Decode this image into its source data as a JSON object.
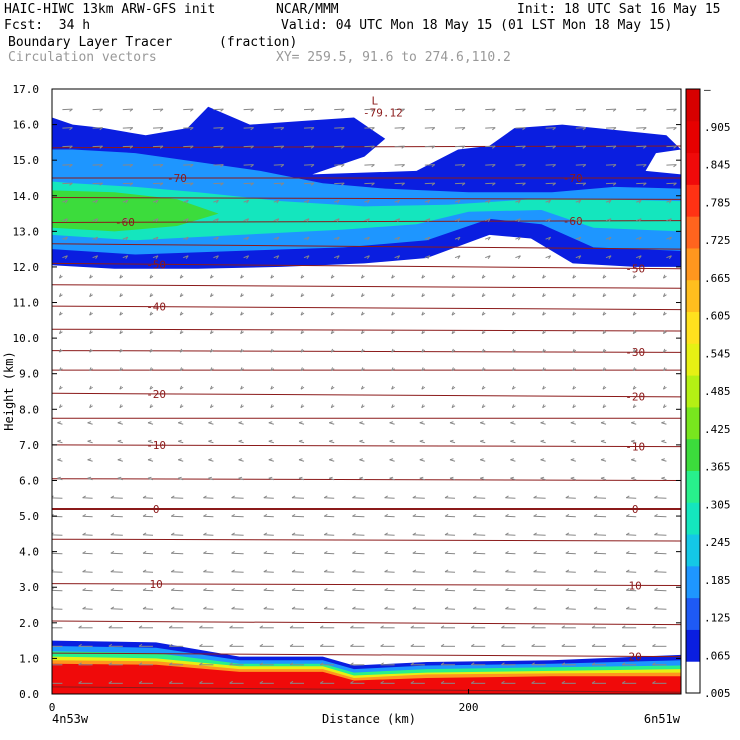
{
  "header": {
    "title_left": "HAIC-HIWC 13km ARW-GFS init",
    "org": "NCAR/MMM",
    "init": "Init: 18 UTC Sat 16 May 15",
    "fcst": "Fcst:  34 h",
    "valid": "Valid: 04 UTC Mon 18 May 15 (01 LST Mon 18 May 15)",
    "field": "Boundary Layer Tracer",
    "units": "(fraction)",
    "vectors": "Circulation vectors",
    "xy": "XY= 259.5, 91.6 to 274.6,110.2"
  },
  "chart_data": {
    "type": "heatmap",
    "title": "Boundary Layer Tracer (fraction)",
    "xlabel": "Distance (km)",
    "ylabel": "Height (km)",
    "xlim": [
      0,
      302
    ],
    "ylim": [
      0,
      17
    ],
    "x_ticks": [
      0,
      200
    ],
    "y_ticks": [
      "0.0",
      "1.0",
      "2.0",
      "3.0",
      "4.0",
      "5.0",
      "6.0",
      "7.0",
      "8.0",
      "9.0",
      "10.0",
      "11.0",
      "12.0",
      "13.0",
      "14.0",
      "15.0",
      "16.0",
      "17.0"
    ],
    "x_end_labels": {
      "left": "4n53w",
      "right": "6n51w"
    },
    "colorbar": {
      "labels": [
        ".005",
        ".065",
        ".125",
        ".185",
        ".245",
        ".305",
        ".365",
        ".425",
        ".485",
        ".545",
        ".605",
        ".665",
        ".725",
        ".785",
        ".845",
        ".905",
        "–"
      ],
      "colors": [
        "#ffffff",
        "#0a1ee0",
        "#1e5af5",
        "#1e96ff",
        "#14c8e6",
        "#14e6be",
        "#28f08c",
        "#3cdc3c",
        "#78e61e",
        "#b4f014",
        "#e6f014",
        "#ffe11e",
        "#ffbe1e",
        "#ff961e",
        "#ff641e",
        "#ff3214",
        "#f00a0a",
        "#e60000",
        "#d70000"
      ]
    },
    "temperature_contours": [
      {
        "y_left": 0.2,
        "y_right": 0.05,
        "label": ""
      },
      {
        "y_left": 1.15,
        "y_right": 1.05,
        "label": "20"
      },
      {
        "y_left": 2.05,
        "y_right": 1.95,
        "label": ""
      },
      {
        "y_left": 3.1,
        "y_right": 3.05,
        "label": "10"
      },
      {
        "y_left": 4.35,
        "y_right": 4.3,
        "label": ""
      },
      {
        "y_left": 5.2,
        "y_right": 5.2,
        "label": "0"
      },
      {
        "y_left": 6.05,
        "y_right": 6.0,
        "label": ""
      },
      {
        "y_left": 7.0,
        "y_right": 6.95,
        "label": "-10"
      },
      {
        "y_left": 7.75,
        "y_right": 7.75,
        "label": ""
      },
      {
        "y_left": 8.45,
        "y_right": 8.35,
        "label": "-20"
      },
      {
        "y_left": 9.1,
        "y_right": 9.1,
        "label": ""
      },
      {
        "y_left": 9.65,
        "y_right": 9.6,
        "label": "-30"
      },
      {
        "y_left": 10.25,
        "y_right": 10.2,
        "label": ""
      },
      {
        "y_left": 10.9,
        "y_right": 10.8,
        "label": "-40"
      },
      {
        "y_left": 11.5,
        "y_right": 11.4,
        "label": ""
      },
      {
        "y_left": 12.1,
        "y_right": 11.95,
        "label": "-50"
      },
      {
        "y_left": 12.65,
        "y_right": 12.5,
        "label": ""
      },
      {
        "y_left": 13.25,
        "y_right": 13.3,
        "label": "-60"
      },
      {
        "y_left": 13.95,
        "y_right": 13.9,
        "label": ""
      },
      {
        "y_left": 14.5,
        "y_right": 14.5,
        "label": "-70"
      },
      {
        "y_left": 15.35,
        "y_right": 15.4,
        "label": ""
      }
    ],
    "contour_label_positions": {
      "20": [
        280
      ],
      "10": [
        50,
        280
      ],
      "0": [
        50,
        280
      ],
      "-10": [
        50,
        280
      ],
      "-20": [
        50,
        280
      ],
      "-30": [
        280
      ],
      "-40": [
        50
      ],
      "-50": [
        50,
        280
      ],
      "-60": [
        35,
        250
      ],
      "-70": [
        60,
        250
      ]
    },
    "min_label": {
      "marker": "L",
      "value": "-79.12",
      "x": 155,
      "y": 16.85
    },
    "upper_plume": {
      "outer": [
        [
          0,
          12.05
        ],
        [
          30,
          11.95
        ],
        [
          70,
          11.95
        ],
        [
          110,
          12.0
        ],
        [
          150,
          12.1
        ],
        [
          180,
          12.25
        ],
        [
          210,
          12.9
        ],
        [
          230,
          12.8
        ],
        [
          250,
          12.1
        ],
        [
          280,
          12.0
        ],
        [
          302,
          12.0
        ],
        [
          302,
          14.6
        ],
        [
          285,
          14.7
        ],
        [
          290,
          15.2
        ],
        [
          302,
          15.3
        ],
        [
          295,
          15.7
        ],
        [
          270,
          15.85
        ],
        [
          245,
          16.0
        ],
        [
          222,
          15.9
        ],
        [
          210,
          15.4
        ],
        [
          195,
          15.3
        ],
        [
          175,
          14.7
        ],
        [
          125,
          14.6
        ],
        [
          150,
          15.1
        ],
        [
          160,
          15.6
        ],
        [
          145,
          16.2
        ],
        [
          120,
          16.1
        ],
        [
          95,
          16.0
        ],
        [
          75,
          16.5
        ],
        [
          65,
          15.9
        ],
        [
          45,
          15.7
        ],
        [
          25,
          15.9
        ],
        [
          10,
          16.0
        ],
        [
          0,
          16.2
        ]
      ],
      "mid": [
        [
          0,
          12.5
        ],
        [
          40,
          12.35
        ],
        [
          90,
          12.45
        ],
        [
          140,
          12.55
        ],
        [
          180,
          12.75
        ],
        [
          210,
          13.35
        ],
        [
          235,
          13.2
        ],
        [
          260,
          12.55
        ],
        [
          302,
          12.45
        ],
        [
          302,
          14.2
        ],
        [
          270,
          14.25
        ],
        [
          240,
          14.1
        ],
        [
          200,
          14.1
        ],
        [
          160,
          14.2
        ],
        [
          130,
          14.35
        ],
        [
          100,
          14.7
        ],
        [
          70,
          14.95
        ],
        [
          40,
          15.2
        ],
        [
          10,
          15.3
        ],
        [
          0,
          15.3
        ]
      ],
      "core": [
        [
          0,
          12.9
        ],
        [
          40,
          12.75
        ],
        [
          90,
          12.9
        ],
        [
          140,
          13.05
        ],
        [
          175,
          13.2
        ],
        [
          200,
          13.55
        ],
        [
          235,
          13.6
        ],
        [
          260,
          13.1
        ],
        [
          302,
          13.0
        ],
        [
          302,
          13.85
        ],
        [
          260,
          13.9
        ],
        [
          230,
          13.9
        ],
        [
          190,
          13.75
        ],
        [
          150,
          13.7
        ],
        [
          110,
          13.85
        ],
        [
          70,
          14.1
        ],
        [
          40,
          14.25
        ],
        [
          10,
          14.35
        ],
        [
          0,
          14.4
        ]
      ],
      "peak": [
        [
          0,
          13.1
        ],
        [
          30,
          13.0
        ],
        [
          60,
          13.15
        ],
        [
          80,
          13.5
        ],
        [
          60,
          13.9
        ],
        [
          30,
          14.1
        ],
        [
          0,
          14.15
        ]
      ]
    },
    "surface_layer": {
      "bands": [
        {
          "color": "#0a1ee0",
          "top": [
            [
              0,
              1.5
            ],
            [
              50,
              1.45
            ],
            [
              90,
              1.05
            ],
            [
              130,
              1.05
            ],
            [
              145,
              0.8
            ],
            [
              180,
              0.9
            ],
            [
              240,
              0.95
            ],
            [
              302,
              1.1
            ]
          ]
        },
        {
          "color": "#1e96ff",
          "top": [
            [
              0,
              1.35
            ],
            [
              50,
              1.3
            ],
            [
              90,
              0.95
            ],
            [
              130,
              0.95
            ],
            [
              145,
              0.7
            ],
            [
              180,
              0.8
            ],
            [
              240,
              0.85
            ],
            [
              302,
              0.95
            ]
          ]
        },
        {
          "color": "#28f08c",
          "top": [
            [
              0,
              1.2
            ],
            [
              50,
              1.15
            ],
            [
              90,
              0.85
            ],
            [
              130,
              0.85
            ],
            [
              145,
              0.6
            ],
            [
              180,
              0.7
            ],
            [
              240,
              0.75
            ],
            [
              302,
              0.8
            ]
          ]
        },
        {
          "color": "#e6f014",
          "top": [
            [
              0,
              1.05
            ],
            [
              50,
              1.0
            ],
            [
              90,
              0.78
            ],
            [
              130,
              0.78
            ],
            [
              145,
              0.52
            ],
            [
              180,
              0.6
            ],
            [
              240,
              0.65
            ],
            [
              302,
              0.7
            ]
          ]
        },
        {
          "color": "#ff961e",
          "top": [
            [
              0,
              0.95
            ],
            [
              50,
              0.92
            ],
            [
              90,
              0.7
            ],
            [
              130,
              0.7
            ],
            [
              145,
              0.45
            ],
            [
              180,
              0.55
            ],
            [
              240,
              0.58
            ],
            [
              302,
              0.6
            ]
          ]
        },
        {
          "color": "#f00a0a",
          "top": [
            [
              0,
              0.85
            ],
            [
              50,
              0.82
            ],
            [
              90,
              0.62
            ],
            [
              130,
              0.62
            ],
            [
              145,
              0.38
            ],
            [
              180,
              0.45
            ],
            [
              240,
              0.5
            ],
            [
              302,
              0.5
            ]
          ]
        }
      ]
    }
  }
}
